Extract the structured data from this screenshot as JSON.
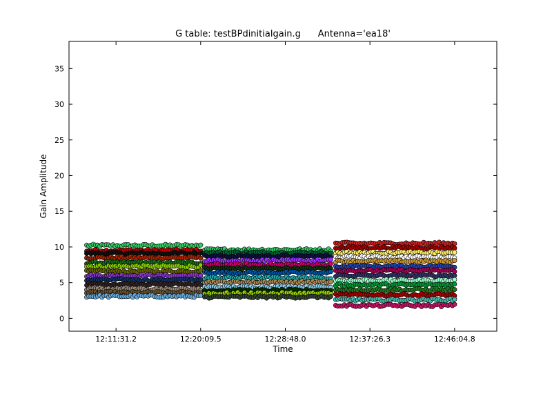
{
  "chart_data": {
    "type": "scatter",
    "title": "G table: testBPdinitialgain.g      Antenna='ea18'",
    "xlabel": "Time",
    "ylabel": "Gain Amplitude",
    "x_ticks": [
      "12:11:31.2",
      "12:20:09.5",
      "12:28:48.0",
      "12:37:26.3",
      "12:46:04.8"
    ],
    "x_tick_seconds": [
      43891.2,
      44409.5,
      44928.0,
      45446.3,
      45964.8
    ],
    "xlim_seconds": [
      43603.2,
      46223.2
    ],
    "y_ticks": [
      0,
      5,
      10,
      15,
      20,
      25,
      30,
      35
    ],
    "ylim": [
      -1.8,
      38.8
    ],
    "grid": false,
    "legend": "none",
    "blocks": [
      {
        "start_seconds": 43711.2,
        "end_seconds": 44409.5,
        "levels": [
          10.2,
          9.5,
          9.1,
          8.5,
          7.8,
          7.3,
          6.6,
          6.0,
          5.4,
          4.8,
          4.1,
          3.6,
          3.1
        ],
        "colors": [
          "#33cc66",
          "#cc0000",
          "#111111",
          "#aa2200",
          "#1a6a1a",
          "#88cc00",
          "#666600",
          "#8833cc",
          "#113366",
          "#332222",
          "#998877",
          "#665533",
          "#66aadd"
        ]
      },
      {
        "start_seconds": 44433.6,
        "end_seconds": 45206.4,
        "levels": [
          9.6,
          9.2,
          8.7,
          8.1,
          7.5,
          7.0,
          6.4,
          5.7,
          5.1,
          4.4,
          3.9,
          3.5,
          3.0
        ],
        "colors": [
          "#33cc66",
          "#006633",
          "#111144",
          "#9933ff",
          "#cc0066",
          "#113311",
          "#0055aa",
          "#22aaaa",
          "#aa8855",
          "#88ccee",
          "#003300",
          "#99cc00",
          "#334433"
        ]
      },
      {
        "start_seconds": 45236.2,
        "end_seconds": 45964.8,
        "levels": [
          10.5,
          9.9,
          9.2,
          8.6,
          8.0,
          7.3,
          6.7,
          6.0,
          5.3,
          4.7,
          4.0,
          3.3,
          2.6,
          1.8
        ],
        "colors": [
          "#cc2222",
          "#aa0000",
          "#ffee66",
          "#ffffff",
          "#cc9933",
          "#2244aa",
          "#aa0055",
          "#333366",
          "#99ffcc",
          "#009933",
          "#227722",
          "#aa0000",
          "#44bbaa",
          "#cc1166"
        ]
      }
    ]
  }
}
